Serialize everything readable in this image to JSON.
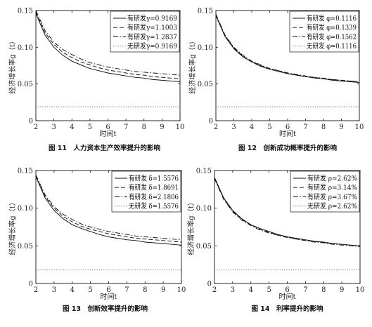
{
  "chart_data": [
    {
      "type": "line",
      "caption": "图 11　人力资本生产效率提升的影响",
      "xlabel": "时间t",
      "ylabel": "经济增长率g（t）",
      "xlim": [
        2,
        10
      ],
      "ylim": [
        0,
        0.15
      ],
      "xticks": [
        "2",
        "3",
        "4",
        "5",
        "6",
        "7",
        "8",
        "9",
        "10"
      ],
      "yticks": [
        "0",
        "0.05",
        "0.10",
        "0.15"
      ],
      "legend_position": "top-right",
      "x": [
        2,
        2.5,
        3,
        3.5,
        4,
        4.5,
        5,
        5.5,
        6,
        6.5,
        7,
        7.5,
        8,
        8.5,
        9,
        9.5,
        10
      ],
      "series": [
        {
          "name": "有研发γ=0.9169",
          "style": "solid",
          "values": [
            0.146,
            0.117,
            0.1,
            0.089,
            0.081,
            0.076,
            0.071,
            0.068,
            0.065,
            0.063,
            0.061,
            0.059,
            0.058,
            0.056,
            0.055,
            0.054,
            0.053
          ]
        },
        {
          "name": "有研发γ=1.1003",
          "style": "dashed",
          "values": [
            0.148,
            0.12,
            0.104,
            0.093,
            0.086,
            0.08,
            0.076,
            0.072,
            0.069,
            0.067,
            0.065,
            0.063,
            0.062,
            0.06,
            0.059,
            0.058,
            0.057
          ]
        },
        {
          "name": "有研发γ=1.2837",
          "style": "dashdot",
          "values": [
            0.15,
            0.123,
            0.107,
            0.097,
            0.09,
            0.084,
            0.079,
            0.076,
            0.073,
            0.071,
            0.069,
            0.067,
            0.066,
            0.065,
            0.064,
            0.063,
            0.062
          ]
        },
        {
          "name": "无研发γ=0.9169",
          "style": "dotted",
          "values": [
            0.019,
            0.019,
            0.019,
            0.019,
            0.019,
            0.019,
            0.019,
            0.019,
            0.019,
            0.019,
            0.019,
            0.019,
            0.019,
            0.019,
            0.019,
            0.019,
            0.019
          ]
        }
      ]
    },
    {
      "type": "line",
      "caption": "图 12　创新成功概率提升的影响",
      "xlabel": "时间t",
      "ylabel": "经济增长率g（t）",
      "xlim": [
        2,
        10
      ],
      "ylim": [
        0,
        0.15
      ],
      "xticks": [
        "2",
        "3",
        "4",
        "5",
        "6",
        "7",
        "8",
        "9",
        "10"
      ],
      "yticks": [
        "0",
        "0.05",
        "0.10",
        "0.15"
      ],
      "legend_position": "top-right",
      "x": [
        2,
        2.5,
        3,
        3.5,
        4,
        4.5,
        5,
        5.5,
        6,
        6.5,
        7,
        7.5,
        8,
        8.5,
        9,
        9.5,
        10
      ],
      "series": [
        {
          "name": "有研发 φ=0.1116",
          "style": "solid",
          "values": [
            0.143,
            0.115,
            0.098,
            0.087,
            0.08,
            0.074,
            0.07,
            0.067,
            0.064,
            0.062,
            0.06,
            0.058,
            0.057,
            0.055,
            0.054,
            0.053,
            0.052
          ]
        },
        {
          "name": "有研发 φ=0.1339",
          "style": "dashed",
          "values": [
            0.144,
            0.116,
            0.099,
            0.088,
            0.081,
            0.075,
            0.071,
            0.068,
            0.065,
            0.062,
            0.06,
            0.059,
            0.057,
            0.056,
            0.055,
            0.054,
            0.053
          ]
        },
        {
          "name": "有研发 φ=0.1562",
          "style": "dashdot",
          "values": [
            0.145,
            0.117,
            0.1,
            0.089,
            0.081,
            0.076,
            0.071,
            0.068,
            0.065,
            0.063,
            0.061,
            0.059,
            0.058,
            0.056,
            0.055,
            0.054,
            0.053
          ]
        },
        {
          "name": "无研发 φ=0.1116",
          "style": "dotted",
          "values": [
            0.019,
            0.019,
            0.019,
            0.019,
            0.019,
            0.019,
            0.019,
            0.019,
            0.019,
            0.019,
            0.019,
            0.019,
            0.019,
            0.019,
            0.019,
            0.019,
            0.019
          ]
        }
      ]
    },
    {
      "type": "line",
      "caption": "图 13　创新效率提升的影响",
      "xlabel": "时间t",
      "ylabel": "经济增长率g（t）",
      "xlim": [
        2,
        10
      ],
      "ylim": [
        0,
        0.15
      ],
      "xticks": [
        "2",
        "3",
        "4",
        "5",
        "6",
        "7",
        "8",
        "9",
        "10"
      ],
      "yticks": [
        "0",
        "0.05",
        "0.10",
        "0.15"
      ],
      "legend_position": "top-right",
      "x": [
        2,
        2.5,
        3,
        3.5,
        4,
        4.5,
        5,
        5.5,
        6,
        6.5,
        7,
        7.5,
        8,
        8.5,
        9,
        9.5,
        10
      ],
      "series": [
        {
          "name": "有研发 δ=1.5576",
          "style": "solid",
          "values": [
            0.142,
            0.114,
            0.097,
            0.086,
            0.078,
            0.073,
            0.069,
            0.065,
            0.062,
            0.06,
            0.058,
            0.057,
            0.055,
            0.054,
            0.053,
            0.052,
            0.051
          ]
        },
        {
          "name": "有研发 δ=1.8691",
          "style": "dashed",
          "values": [
            0.143,
            0.116,
            0.1,
            0.089,
            0.082,
            0.076,
            0.072,
            0.069,
            0.066,
            0.064,
            0.062,
            0.06,
            0.059,
            0.058,
            0.057,
            0.056,
            0.055
          ]
        },
        {
          "name": "有研发 δ=2.1806",
          "style": "dashdot",
          "values": [
            0.144,
            0.118,
            0.102,
            0.092,
            0.085,
            0.079,
            0.075,
            0.072,
            0.069,
            0.067,
            0.065,
            0.063,
            0.062,
            0.061,
            0.06,
            0.059,
            0.058
          ]
        },
        {
          "name": "无研发 δ=1.5576",
          "style": "dotted",
          "values": [
            0.018,
            0.018,
            0.018,
            0.018,
            0.018,
            0.018,
            0.018,
            0.018,
            0.018,
            0.018,
            0.018,
            0.018,
            0.018,
            0.018,
            0.018,
            0.018,
            0.018
          ]
        }
      ]
    },
    {
      "type": "line",
      "caption": "图 14　利率提升的影响",
      "xlabel": "时间t",
      "ylabel": "经济增长率g（t）",
      "xlim": [
        2,
        10
      ],
      "ylim": [
        0,
        0.15
      ],
      "xticks": [
        "2",
        "3",
        "4",
        "5",
        "6",
        "7",
        "8",
        "9",
        "10"
      ],
      "yticks": [
        "0",
        "0.05",
        "0.10",
        "0.15"
      ],
      "legend_position": "top-right",
      "x": [
        2,
        2.5,
        3,
        3.5,
        4,
        4.5,
        5,
        5.5,
        6,
        6.5,
        7,
        7.5,
        8,
        8.5,
        9,
        9.5,
        10
      ],
      "series": [
        {
          "name": "有研发 ρ=2.62%",
          "style": "solid",
          "values": [
            0.141,
            0.114,
            0.097,
            0.086,
            0.078,
            0.073,
            0.069,
            0.065,
            0.062,
            0.06,
            0.058,
            0.056,
            0.055,
            0.053,
            0.052,
            0.051,
            0.05
          ]
        },
        {
          "name": "有研发 ρ=3.14%",
          "style": "dashed",
          "values": [
            0.14,
            0.113,
            0.096,
            0.085,
            0.078,
            0.072,
            0.068,
            0.064,
            0.062,
            0.059,
            0.057,
            0.056,
            0.054,
            0.053,
            0.052,
            0.051,
            0.05
          ]
        },
        {
          "name": "有研发 ρ=3.67%",
          "style": "dashdot",
          "values": [
            0.139,
            0.112,
            0.095,
            0.084,
            0.077,
            0.071,
            0.067,
            0.064,
            0.061,
            0.059,
            0.057,
            0.055,
            0.054,
            0.052,
            0.051,
            0.05,
            0.049
          ]
        },
        {
          "name": "无研发 ρ=2.62%",
          "style": "dotted",
          "values": [
            0.018,
            0.018,
            0.018,
            0.018,
            0.018,
            0.018,
            0.018,
            0.018,
            0.018,
            0.018,
            0.018,
            0.018,
            0.018,
            0.018,
            0.018,
            0.018,
            0.018
          ]
        }
      ]
    }
  ]
}
